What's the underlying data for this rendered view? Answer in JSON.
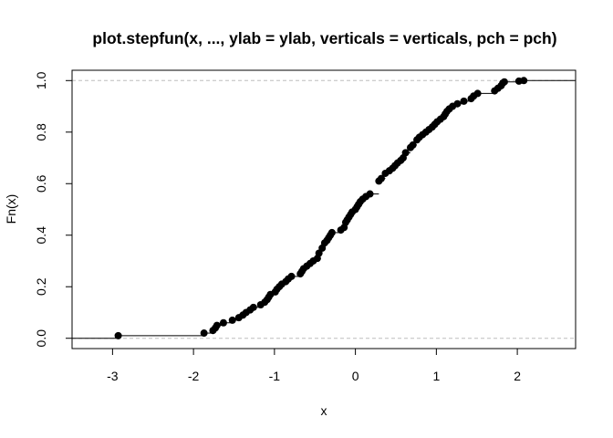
{
  "chart_data": {
    "type": "scatter",
    "subtype": "ecdf-step",
    "title": "plot.stepfun(x, ..., ylab = ylab, verticals = verticals, pch = pch)",
    "xlabel": "x",
    "ylabel": "Fn(x)",
    "xlim": [
      -3.5,
      2.72
    ],
    "ylim": [
      -0.04,
      1.04
    ],
    "xticks": [
      -3,
      -2,
      -1,
      0,
      1,
      2
    ],
    "yticks": [
      0.0,
      0.2,
      0.4,
      0.6,
      0.8,
      1.0
    ],
    "xtick_labels": [
      "-3",
      "-2",
      "-1",
      "0",
      "1",
      "2"
    ],
    "ytick_labels": [
      "0.0",
      "0.2",
      "0.4",
      "0.6",
      "0.8",
      "1.0"
    ],
    "hlines": [
      0,
      1
    ],
    "n": 100,
    "x": [
      -2.93,
      -1.87,
      -1.76,
      -1.73,
      -1.71,
      -1.63,
      -1.52,
      -1.44,
      -1.39,
      -1.35,
      -1.3,
      -1.26,
      -1.17,
      -1.12,
      -1.09,
      -1.07,
      -1.05,
      -0.99,
      -0.97,
      -0.94,
      -0.91,
      -0.86,
      -0.83,
      -0.79,
      -0.68,
      -0.66,
      -0.64,
      -0.6,
      -0.56,
      -0.52,
      -0.47,
      -0.45,
      -0.41,
      -0.38,
      -0.35,
      -0.33,
      -0.31,
      -0.29,
      -0.18,
      -0.14,
      -0.12,
      -0.1,
      -0.08,
      -0.06,
      -0.04,
      0.0,
      0.02,
      0.04,
      0.06,
      0.09,
      0.13,
      0.18,
      0.29,
      0.32,
      0.37,
      0.42,
      0.46,
      0.49,
      0.52,
      0.56,
      0.59,
      0.62,
      0.68,
      0.71,
      0.76,
      0.79,
      0.83,
      0.87,
      0.91,
      0.95,
      0.98,
      1.01,
      1.05,
      1.09,
      1.11,
      1.13,
      1.16,
      1.2,
      1.26,
      1.34,
      1.43,
      1.46,
      1.51,
      1.72,
      1.76,
      1.8,
      1.82,
      1.84,
      2.02,
      2.08
    ],
    "y": [
      0.01,
      0.02,
      0.03,
      0.04,
      0.05,
      0.06,
      0.07,
      0.08,
      0.09,
      0.1,
      0.11,
      0.12,
      0.13,
      0.14,
      0.15,
      0.16,
      0.17,
      0.18,
      0.19,
      0.2,
      0.21,
      0.22,
      0.23,
      0.24,
      0.25,
      0.26,
      0.27,
      0.28,
      0.29,
      0.3,
      0.31,
      0.33,
      0.35,
      0.37,
      0.38,
      0.39,
      0.4,
      0.41,
      0.42,
      0.43,
      0.45,
      0.46,
      0.47,
      0.48,
      0.49,
      0.5,
      0.51,
      0.52,
      0.53,
      0.54,
      0.55,
      0.56,
      0.61,
      0.62,
      0.64,
      0.65,
      0.66,
      0.67,
      0.68,
      0.69,
      0.7,
      0.72,
      0.74,
      0.75,
      0.77,
      0.78,
      0.79,
      0.8,
      0.81,
      0.82,
      0.83,
      0.84,
      0.85,
      0.86,
      0.87,
      0.88,
      0.89,
      0.9,
      0.91,
      0.92,
      0.93,
      0.94,
      0.95,
      0.96,
      0.97,
      0.98,
      0.99,
      0.995,
      0.998,
      1.0
    ]
  }
}
